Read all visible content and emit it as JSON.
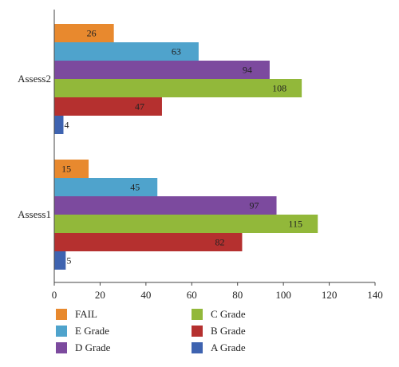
{
  "chart_data": {
    "type": "bar",
    "orientation": "horizontal",
    "categories": [
      "Assess1",
      "Assess2"
    ],
    "series": [
      {
        "name": "FAIL",
        "color": "#e8892e",
        "values": [
          15,
          26
        ]
      },
      {
        "name": "E Grade",
        "color": "#4fa3cc",
        "values": [
          45,
          63
        ]
      },
      {
        "name": "D Grade",
        "color": "#7c4a9e",
        "values": [
          97,
          94
        ]
      },
      {
        "name": "C Grade",
        "color": "#92b83a",
        "values": [
          115,
          108
        ]
      },
      {
        "name": "B Grade",
        "color": "#b5302f",
        "values": [
          82,
          47
        ]
      },
      {
        "name": "A Grade",
        "color": "#3e63b0",
        "values": [
          5,
          4
        ]
      }
    ],
    "bar_order_top_to_bottom": [
      "FAIL",
      "E Grade",
      "D Grade",
      "C Grade",
      "B Grade",
      "A Grade"
    ],
    "xlim": [
      0,
      140
    ],
    "xticks": [
      0,
      20,
      40,
      60,
      80,
      100,
      120,
      140
    ],
    "title": "",
    "xlabel": "",
    "ylabel": "",
    "grid": false,
    "legend_position": "bottom",
    "data_labels": true
  }
}
